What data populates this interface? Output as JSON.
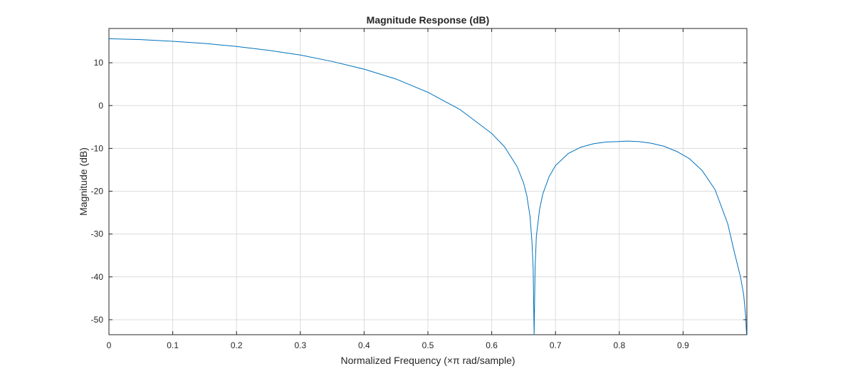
{
  "chart_data": {
    "type": "line",
    "title": "Magnitude Response (dB)",
    "xlabel": "Normalized Frequency (×π rad/sample)",
    "ylabel": "Magnitude (dB)",
    "xlim": [
      0,
      1
    ],
    "ylim": [
      -53.5,
      18
    ],
    "xticks": [
      0,
      0.1,
      0.2,
      0.3,
      0.4,
      0.5,
      0.6,
      0.7,
      0.8,
      0.9
    ],
    "xtick_labels": [
      "0",
      "0.1",
      "0.2",
      "0.3",
      "0.4",
      "0.5",
      "0.6",
      "0.7",
      "0.8",
      "0.9"
    ],
    "yticks": [
      10,
      0,
      -10,
      -20,
      -30,
      -40,
      -50
    ],
    "ytick_labels": [
      "10",
      "0",
      "-10",
      "-20",
      "-30",
      "-40",
      "-50"
    ],
    "grid": true,
    "color": "#0072BD",
    "series": [
      {
        "x": [
          0,
          0.05,
          0.1,
          0.15,
          0.2,
          0.25,
          0.3,
          0.35,
          0.4,
          0.45,
          0.5,
          0.55,
          0.6,
          0.62,
          0.64,
          0.65,
          0.655,
          0.66,
          0.663,
          0.665,
          0.6665,
          0.668,
          0.67,
          0.675,
          0.68,
          0.69,
          0.7,
          0.72,
          0.74,
          0.76,
          0.78,
          0.8,
          0.8125,
          0.83,
          0.85,
          0.87,
          0.89,
          0.91,
          0.93,
          0.95,
          0.97,
          0.98,
          0.99,
          0.995,
          0.998,
          0.9995
        ],
        "y": [
          15.6,
          15.4,
          15.0,
          14.5,
          13.8,
          12.9,
          11.8,
          10.3,
          8.5,
          6.2,
          3.1,
          -0.9,
          -6.5,
          -9.6,
          -14.3,
          -18.1,
          -21.0,
          -25.8,
          -31.5,
          -38.0,
          -53.5,
          -38.0,
          -30.5,
          -24.3,
          -20.7,
          -16.6,
          -14.0,
          -11.2,
          -9.7,
          -8.9,
          -8.5,
          -8.4,
          -8.3,
          -8.4,
          -8.8,
          -9.5,
          -10.7,
          -12.4,
          -15.2,
          -19.6,
          -27.6,
          -34.0,
          -40.0,
          -44.2,
          -49.0,
          -53.5
        ]
      }
    ]
  }
}
